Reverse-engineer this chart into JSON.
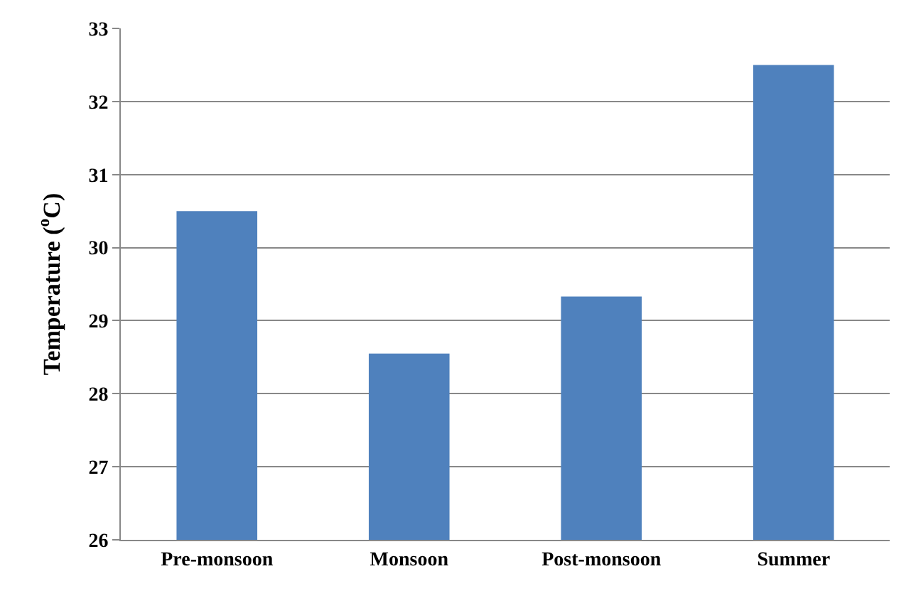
{
  "chart_data": {
    "type": "bar",
    "ylabel": "Temperature ($^{o}$C)",
    "categories": [
      "Pre-monsoon",
      "Monsoon",
      "Post-monsoon",
      "Summer"
    ],
    "values": [
      30.5,
      28.55,
      29.33,
      32.5
    ],
    "color": "#4f81bd",
    "ylim": [
      26,
      33
    ],
    "yticks": [
      26,
      27,
      28,
      29,
      30,
      31,
      32,
      33
    ],
    "grid": "y"
  }
}
